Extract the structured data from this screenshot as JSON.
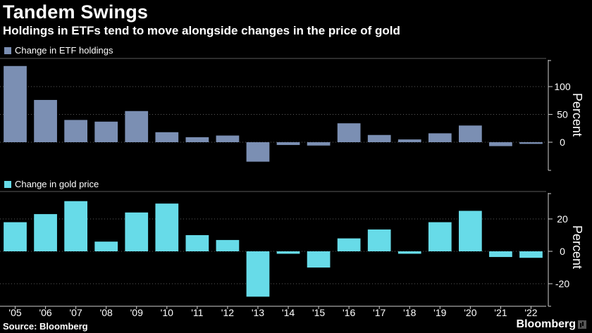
{
  "header": {
    "title": "Tandem Swings",
    "subtitle": "Holdings in ETFs tend to move alongside changes in the price of gold"
  },
  "footer": {
    "source": "Source: Bloomberg",
    "brand": "Bloomberg"
  },
  "colors": {
    "background": "#000000",
    "etf_bar": "#7b8fb3",
    "gold_bar": "#67dbe8",
    "grid": "#5a5a5a",
    "text": "#ffffff"
  },
  "chart_data": [
    {
      "type": "bar",
      "categories": [
        "'05",
        "'06",
        "'07",
        "'08",
        "'09",
        "'10",
        "'11",
        "'12",
        "'13",
        "'14",
        "'15",
        "'16",
        "'17",
        "'18",
        "'19",
        "'20",
        "'21",
        "'22"
      ],
      "series": [
        {
          "name": "Change in ETF holdings",
          "values": [
            137,
            76,
            40,
            37,
            56,
            18,
            9,
            12,
            -35,
            -5,
            -6,
            34,
            13,
            5,
            16,
            30,
            -7,
            -3
          ]
        }
      ],
      "ylabel": "Percent",
      "yticks": [
        0,
        50,
        100
      ],
      "ylim": [
        -55,
        150
      ],
      "grid": true,
      "legend": "top-left"
    },
    {
      "type": "bar",
      "categories": [
        "'05",
        "'06",
        "'07",
        "'08",
        "'09",
        "'10",
        "'11",
        "'12",
        "'13",
        "'14",
        "'15",
        "'16",
        "'17",
        "'18",
        "'19",
        "'20",
        "'21",
        "'22"
      ],
      "series": [
        {
          "name": "Change in gold price",
          "values": [
            18,
            23,
            31,
            6,
            24,
            29.5,
            10,
            7,
            -28,
            -1.5,
            -10,
            8,
            13.5,
            -1.5,
            18,
            25,
            -3.5,
            -4
          ]
        }
      ],
      "ylabel": "Percent",
      "yticks": [
        -20,
        0,
        20
      ],
      "ylim": [
        -35,
        37
      ],
      "grid": true,
      "legend": "top-left"
    }
  ]
}
